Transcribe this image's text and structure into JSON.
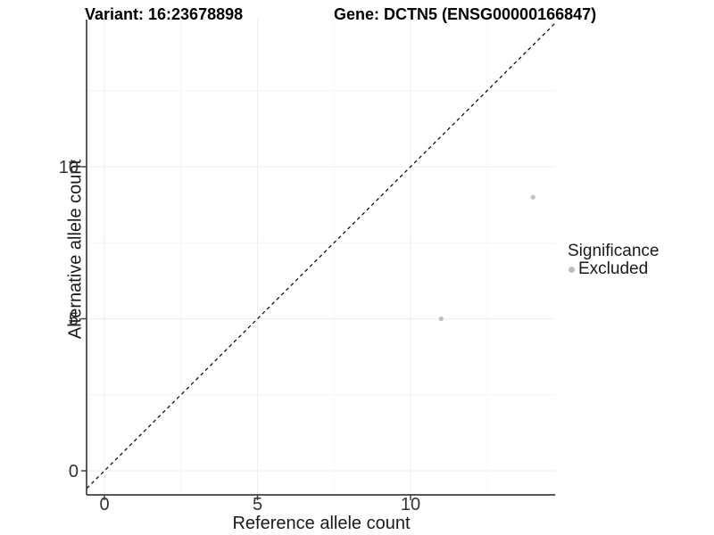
{
  "header": {
    "title_left": "Variant: 16:23678898",
    "title_right": "Gene: DCTN5 (ENSG00000166847)"
  },
  "axes": {
    "x_label": "Reference allele count",
    "y_label": "Alternative allele count"
  },
  "legend": {
    "title": "Significance",
    "items": [
      {
        "label": "Excluded",
        "marker_color": "#bdbdbd"
      }
    ]
  },
  "chart_data": {
    "type": "scatter",
    "title": "Variant: 16:23678898 — Gene: DCTN5 (ENSG00000166847)",
    "xlabel": "Reference allele count",
    "ylabel": "Alternative allele count",
    "xlim": [
      -0.58,
      14.72
    ],
    "ylim": [
      -0.79,
      14.84
    ],
    "x_ticks": [
      0,
      5,
      10
    ],
    "y_ticks": [
      0,
      5,
      10
    ],
    "x_minor_ticks": [
      2.5,
      7.5,
      12.5
    ],
    "y_minor_ticks": [
      2.5,
      7.5,
      12.5
    ],
    "grid": "major and minor, very faint",
    "legend_position": "right",
    "reference_line": {
      "type": "identity",
      "equation": "y = x",
      "style": "dashed",
      "color": "#000000"
    },
    "series": [
      {
        "name": "Excluded",
        "color": "#c0c0c0",
        "marker": "circle",
        "points": [
          {
            "x": 11,
            "y": 5
          },
          {
            "x": 14,
            "y": 9
          }
        ]
      }
    ]
  },
  "colors": {
    "background": "#ffffff",
    "axis_line": "#404040",
    "tick_mark": "#404040",
    "grid_major": "#ededed",
    "grid_minor": "#f6f6f6",
    "point": "#c0c0c0",
    "legend_marker": "#bdbdbd",
    "text": "#1a1a1a"
  }
}
